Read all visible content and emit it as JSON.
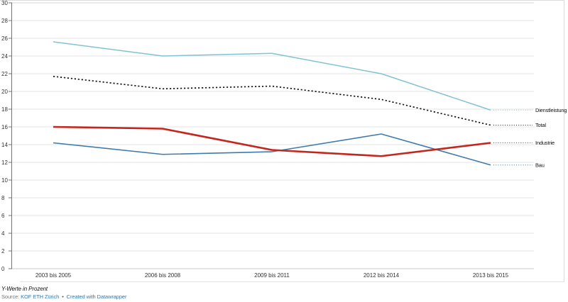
{
  "chart_data": {
    "type": "line",
    "title": "",
    "xlabel": "",
    "ylabel": "",
    "categories": [
      "2003 bis 2005",
      "2006 bis 2008",
      "2009 bis 2011",
      "2012 bis 2014",
      "2013 bis 2015"
    ],
    "series": [
      {
        "name": "Dienstleistung",
        "color": "#7fc4d4",
        "dash": "",
        "width": 1.5,
        "values": [
          25.6,
          24.0,
          24.3,
          22.0,
          17.9
        ]
      },
      {
        "name": "Total",
        "color": "#161616",
        "dash": "2.2 2.8",
        "width": 1.7,
        "values": [
          21.7,
          20.3,
          20.6,
          19.1,
          16.2
        ]
      },
      {
        "name": "Bau",
        "color": "#3e7cac",
        "dash": "",
        "width": 1.6,
        "values": [
          14.2,
          12.9,
          13.2,
          15.2,
          11.7
        ]
      },
      {
        "name": "Industrie",
        "color": "#c4261d",
        "dash": "",
        "width": 2.6,
        "values": [
          16.0,
          15.8,
          13.4,
          12.7,
          14.2
        ]
      }
    ],
    "ylim": [
      0,
      30
    ],
    "ytick_step": 2,
    "grid": "horizontal",
    "legend_position": "right-edge-labels"
  },
  "colors": {
    "grid": "#e3e3e3",
    "grid_top": "#d4d4d4",
    "grid_zero": "#c9c9c9",
    "axis": "#737373",
    "tick_label": "#333333",
    "series_label": "#111111"
  },
  "footer": {
    "note": "Y-Werte in Prozent",
    "source_prefix": "Source:",
    "source_link": "KOF ETH Zürich",
    "separator": "•",
    "credit": "Created with Datawrapper"
  }
}
